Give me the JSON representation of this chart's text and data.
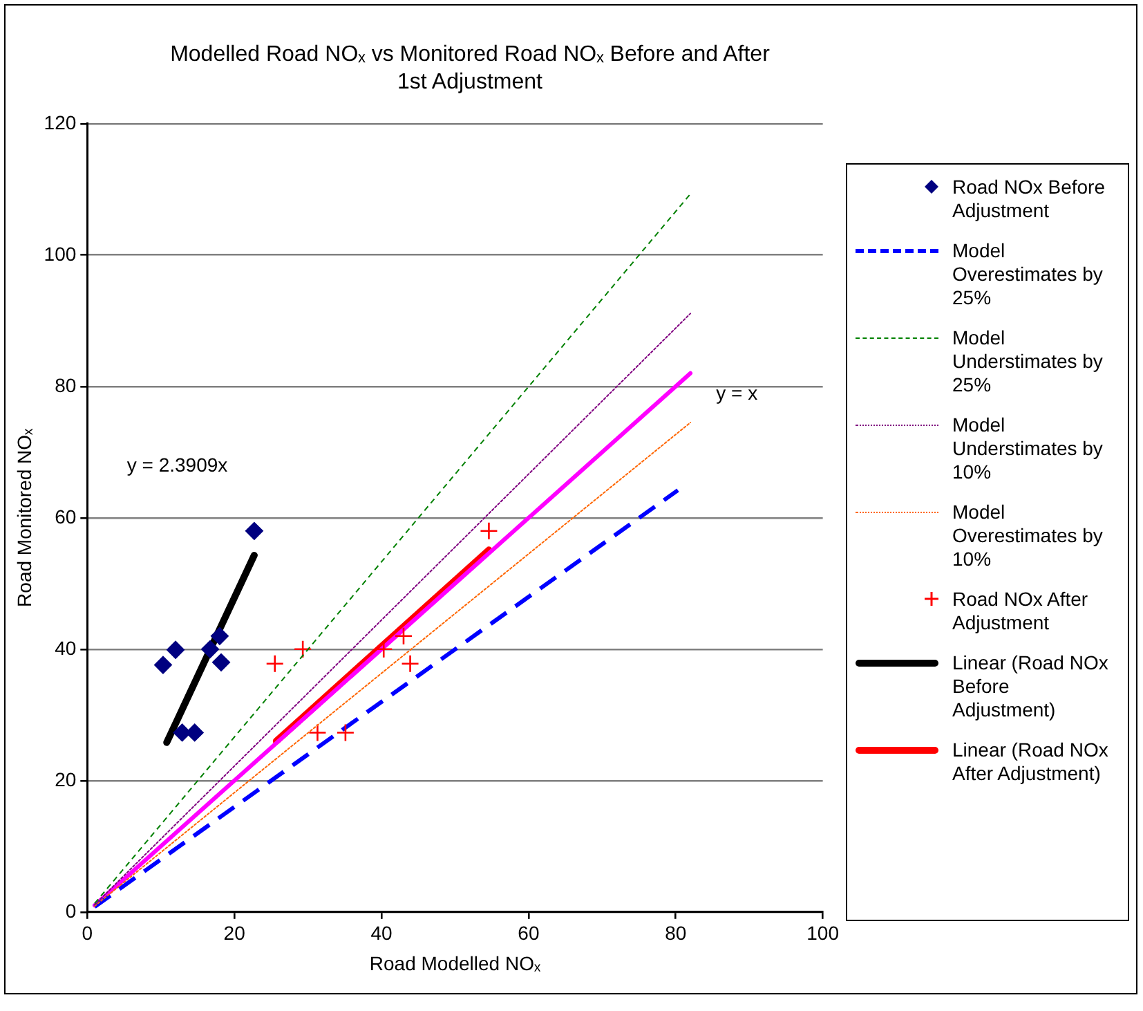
{
  "chart_data": {
    "type": "scatter",
    "title": "Modelled Road NOₓ vs Monitored Road NOₓ Before and After 1st Adjustment",
    "xlabel": "Road Modelled NOₓ",
    "ylabel": "Road Monitored NOₓ",
    "xlim": [
      0,
      100
    ],
    "xticks": [
      0,
      20,
      40,
      60,
      80,
      100
    ],
    "ylim": [
      0,
      120
    ],
    "yticks": [
      0,
      20,
      40,
      60,
      80,
      100,
      120
    ],
    "grid": "y",
    "legend": "right",
    "series": [
      {
        "name": "Road NOx Before Adjustment",
        "marker": "diamond",
        "color": "#000080",
        "x": [
          10.3,
          12.0,
          12.9,
          14.6,
          16.7,
          18.0,
          18.2,
          22.7
        ],
        "values": [
          37.6,
          39.9,
          27.3,
          27.3,
          40.0,
          42.0,
          38.0,
          58.0
        ]
      },
      {
        "name": "Model Overestimates by 25%",
        "type": "line",
        "line_style": "dashed",
        "marker": "none",
        "color": "#0000ff",
        "x": [
          1,
          80.3
        ],
        "values": [
          0.8,
          64.2
        ]
      },
      {
        "name": "Model Understimates by 25%",
        "type": "line",
        "line_style": "dashed",
        "marker": "none",
        "color": "#008000",
        "x": [
          1,
          82
        ],
        "values": [
          1.3,
          109.3
        ]
      },
      {
        "name": "Model Understimates by 10%",
        "type": "line",
        "line_style": "dotted",
        "marker": "none",
        "color": "#800080",
        "x": [
          1,
          82
        ],
        "values": [
          1.1,
          91.1
        ]
      },
      {
        "name": "Model Overestimates by 10%",
        "type": "line",
        "line_style": "dotted",
        "marker": "none",
        "color": "#ff6600",
        "x": [
          1,
          82
        ],
        "values": [
          0.9,
          74.5
        ]
      },
      {
        "name": "Road NOx After Adjustment",
        "marker": "cross",
        "color": "#ff0000",
        "x": [
          25.5,
          29.3,
          31.3,
          35.1,
          40.3,
          43.0,
          43.9,
          54.6
        ],
        "values": [
          37.8,
          40.0,
          27.3,
          27.3,
          40.0,
          42.0,
          37.8,
          58.0
        ]
      },
      {
        "name": "Linear (Road NOx Before Adjustment)",
        "type": "line",
        "line_style": "solid",
        "marker": "none",
        "color": "#000000",
        "x": [
          10.8,
          22.7
        ],
        "values": [
          25.8,
          54.3
        ]
      },
      {
        "name": "Linear (Road NOx After Adjustment)",
        "type": "line",
        "line_style": "solid",
        "marker": "none",
        "color": "#ff0000",
        "x": [
          25.7,
          54.6
        ],
        "values": [
          26.0,
          55.1
        ]
      },
      {
        "type": "line",
        "line_style": "solid",
        "marker": "none",
        "color": "#ff00ff",
        "x": [
          1,
          82
        ],
        "values": [
          1,
          82
        ]
      }
    ],
    "annotations": [
      "y = 2.3909x",
      "y = x"
    ]
  }
}
